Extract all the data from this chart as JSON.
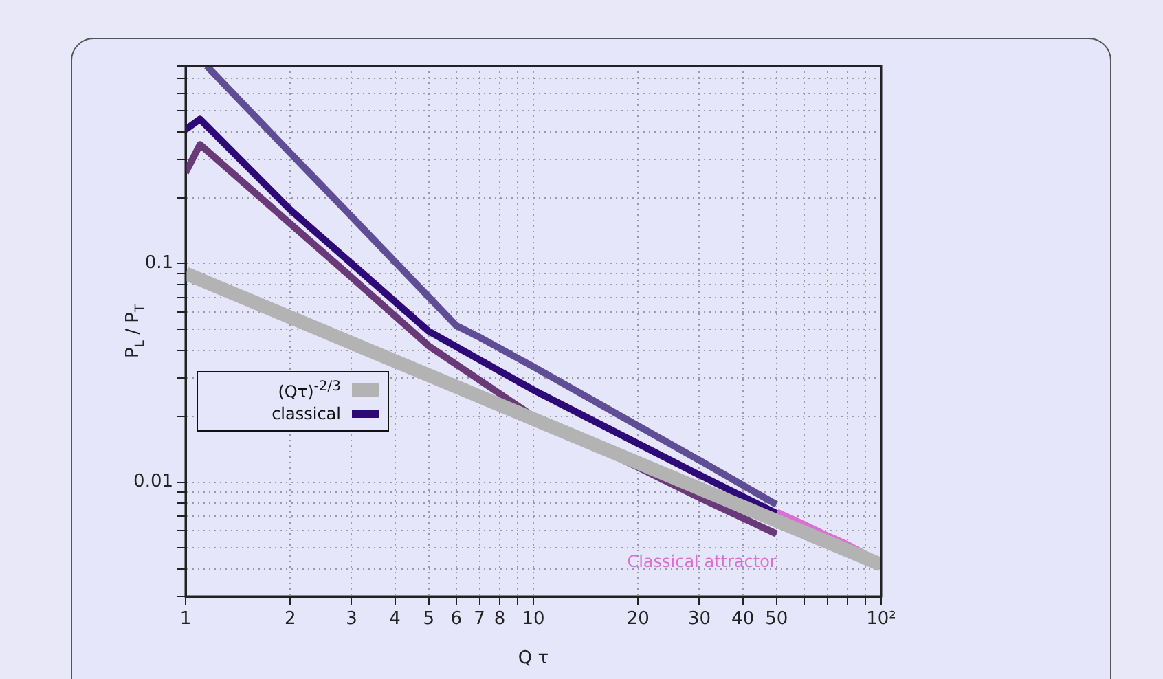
{
  "chart_data": {
    "type": "line",
    "xlabel": "Q τ",
    "ylabel": "P$_{L}$ / P$_{T}$",
    "log": "xy",
    "grid": true,
    "legend": "center left",
    "marker": "none",
    "line_style": "solid",
    "xlim": [
      1,
      100
    ],
    "ylim": [
      0.003,
      0.8
    ],
    "xticks": [
      1,
      2,
      3,
      4,
      5,
      6,
      7,
      8,
      {
        "value": 9,
        "label": null
      },
      10,
      20,
      30,
      40,
      50,
      {
        "value": 60,
        "label": null
      },
      {
        "value": 70,
        "label": null
      },
      {
        "value": 80,
        "label": null
      },
      {
        "value": 90,
        "label": null
      },
      {
        "value": 100,
        "label": "10²"
      }
    ],
    "yticks": [
      {
        "value": 0.003,
        "label": null
      },
      {
        "value": 0.004,
        "label": null
      },
      {
        "value": 0.005,
        "label": null
      },
      {
        "value": 0.006,
        "label": null
      },
      {
        "value": 0.007,
        "label": null
      },
      {
        "value": 0.008,
        "label": null
      },
      {
        "value": 0.009,
        "label": null
      },
      0.01,
      {
        "value": 0.02,
        "label": null
      },
      {
        "value": 0.03,
        "label": null
      },
      {
        "value": 0.04,
        "label": null
      },
      {
        "value": 0.05,
        "label": null
      },
      {
        "value": 0.06,
        "label": null
      },
      {
        "value": 0.07,
        "label": null
      },
      {
        "value": 0.08,
        "label": null
      },
      {
        "value": 0.09,
        "label": null
      },
      0.1,
      {
        "value": 0.2,
        "label": null
      },
      {
        "value": 0.3,
        "label": null
      },
      {
        "value": 0.4,
        "label": null
      },
      {
        "value": 0.5,
        "label": null
      },
      {
        "value": 0.6,
        "label": null
      },
      {
        "value": 0.7,
        "label": null
      },
      {
        "value": 0.8,
        "label": null
      }
    ],
    "series": [
      {
        "name": "(Qτ)$^{-2/3}$",
        "color": "#b3b3b3",
        "x": [
          1,
          100
        ],
        "values": [
          0.09,
          0.0042
        ]
      },
      {
        "color": "#5f4e96",
        "x": [
          1.15,
          2,
          3,
          6,
          7,
          10,
          20,
          30,
          50
        ],
        "values": [
          0.8,
          0.32,
          0.164,
          0.052,
          0.046,
          0.0337,
          0.0181,
          0.0126,
          0.0079
        ]
      },
      {
        "name": "classical",
        "color": "#2e0a78",
        "x": [
          1,
          1.1,
          2,
          3,
          5,
          10,
          20,
          30,
          50
        ],
        "values": [
          0.41,
          0.457,
          0.176,
          0.1,
          0.049,
          0.0264,
          0.015,
          0.0108,
          0.0072
        ]
      },
      {
        "color": "#6a3a78",
        "x": [
          1,
          1.1,
          2,
          3,
          5,
          10,
          20,
          30,
          50
        ],
        "values": [
          0.26,
          0.35,
          0.152,
          0.0865,
          0.042,
          0.02,
          0.0117,
          0.0085,
          0.0058
        ]
      },
      {
        "name": "Classical attractor",
        "color": "#da70d6",
        "x": [
          50,
          60,
          70,
          80,
          90,
          100
        ],
        "values": [
          0.0072,
          0.0063,
          0.0056,
          0.0051,
          0.0046,
          0.0041
        ]
      }
    ]
  }
}
